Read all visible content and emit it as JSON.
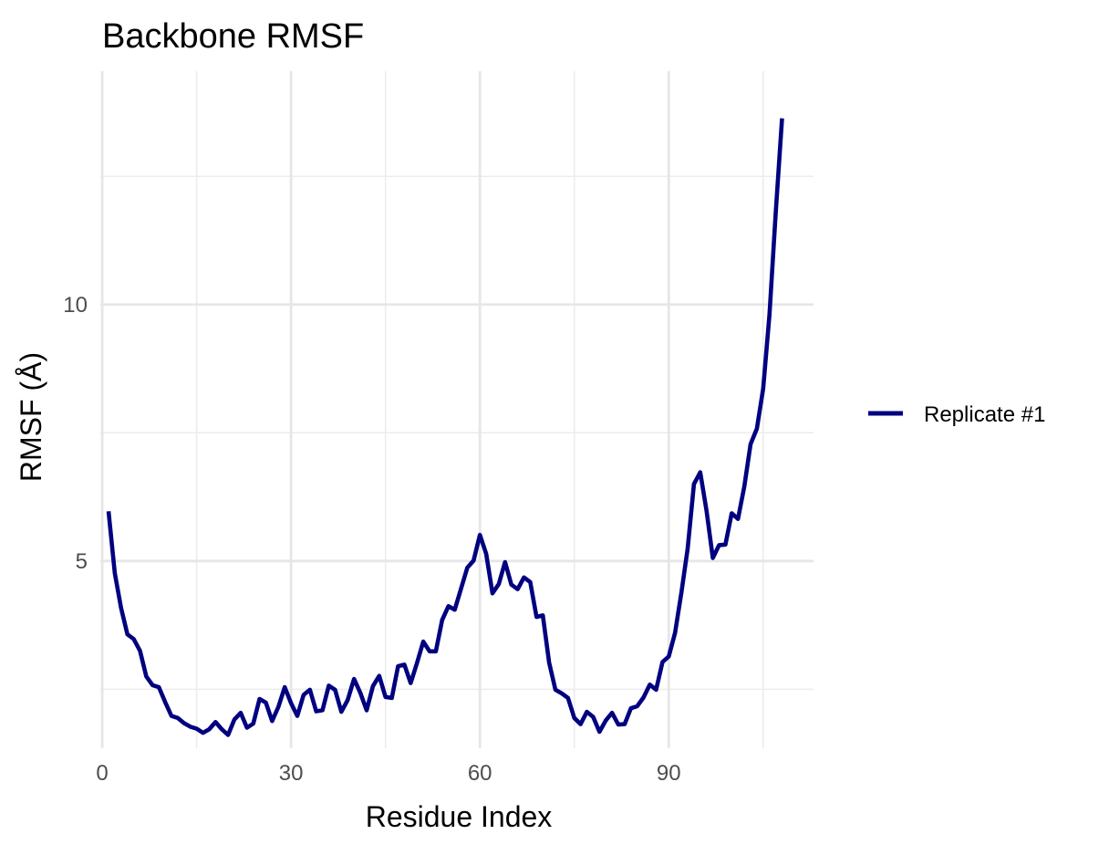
{
  "chart_data": {
    "type": "line",
    "title": "Backbone RMSF",
    "xlabel": "Residue Index",
    "ylabel": "RMSF (Å)",
    "xlim": [
      -0.3,
      113
    ],
    "ylim": [
      1.35,
      14.55
    ],
    "x_ticks": [
      0,
      30,
      60,
      90
    ],
    "x_tick_labels": [
      "0",
      "30",
      "60",
      "90"
    ],
    "x_minor_ticks": [
      15,
      45,
      75,
      105
    ],
    "y_ticks": [
      5,
      10
    ],
    "y_tick_labels": [
      "5",
      "10"
    ],
    "y_minor_ticks": [
      2.5,
      7.5,
      12.5
    ],
    "grid": true,
    "legend_position": "right",
    "series": [
      {
        "name": "Replicate #1",
        "color": "#000080",
        "x": [
          1,
          2,
          3,
          4,
          5,
          6,
          7,
          8,
          9,
          10,
          11,
          12,
          13,
          14,
          15,
          16,
          17,
          18,
          19,
          20,
          21,
          22,
          23,
          24,
          25,
          26,
          27,
          28,
          29,
          30,
          31,
          32,
          33,
          34,
          35,
          36,
          37,
          38,
          39,
          40,
          41,
          42,
          43,
          44,
          45,
          46,
          47,
          48,
          49,
          50,
          51,
          52,
          53,
          54,
          55,
          56,
          57,
          58,
          59,
          60,
          61,
          62,
          63,
          64,
          65,
          66,
          67,
          68,
          69,
          70,
          71,
          72,
          73,
          74,
          75,
          76,
          77,
          78,
          79,
          80,
          81,
          82,
          83,
          84,
          85,
          86,
          87,
          88,
          89,
          90,
          91,
          92,
          93,
          94,
          95,
          96,
          97,
          98,
          99,
          100,
          101,
          102,
          103,
          104,
          105,
          106,
          107,
          108
        ],
        "values": [
          5.97,
          4.76,
          4.08,
          3.57,
          3.48,
          3.25,
          2.75,
          2.58,
          2.54,
          2.25,
          1.98,
          1.94,
          1.84,
          1.77,
          1.73,
          1.65,
          1.72,
          1.86,
          1.72,
          1.61,
          1.91,
          2.04,
          1.75,
          1.83,
          2.31,
          2.24,
          1.88,
          2.16,
          2.54,
          2.23,
          1.98,
          2.39,
          2.49,
          2.07,
          2.09,
          2.57,
          2.49,
          2.06,
          2.29,
          2.7,
          2.43,
          2.09,
          2.56,
          2.76,
          2.35,
          2.33,
          2.95,
          2.98,
          2.62,
          3.01,
          3.43,
          3.24,
          3.24,
          3.85,
          4.12,
          4.05,
          4.46,
          4.87,
          5.01,
          5.51,
          5.14,
          4.37,
          4.55,
          4.98,
          4.54,
          4.45,
          4.68,
          4.59,
          3.91,
          3.94,
          3.02,
          2.49,
          2.42,
          2.33,
          1.94,
          1.82,
          2.06,
          1.96,
          1.67,
          1.89,
          2.04,
          1.81,
          1.82,
          2.13,
          2.17,
          2.34,
          2.59,
          2.49,
          3.03,
          3.14,
          3.6,
          4.38,
          5.24,
          6.5,
          6.73,
          5.98,
          5.06,
          5.31,
          5.32,
          5.93,
          5.82,
          6.45,
          7.28,
          7.58,
          8.36,
          9.8,
          11.8,
          13.63
        ]
      }
    ]
  }
}
